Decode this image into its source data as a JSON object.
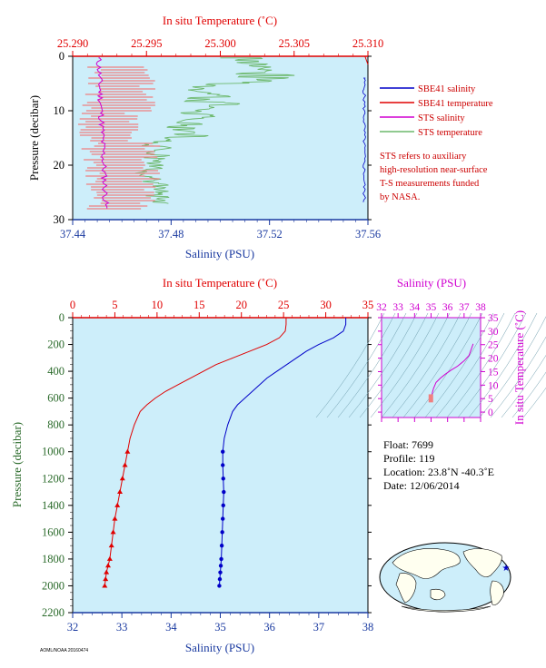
{
  "colors": {
    "plot_bg": "#cdeefa",
    "red": "#e00000",
    "blue": "#0000c8",
    "magenta": "#d000d0",
    "green": "#6cb86c",
    "salmon": "#f08080",
    "axis_blue": "#1a3aa0",
    "axis_green": "#2a6a2a",
    "note_red": "#cc0000"
  },
  "top_chart": {
    "title_top": "In situ Temperature (˚C)",
    "ylabel": "Pressure (decibar)",
    "xlabel": "Salinity (PSU)",
    "temp_ticks": [
      "25.290",
      "25.295",
      "25.300",
      "25.305",
      "25.310"
    ],
    "sal_ticks": [
      "37.44",
      "37.48",
      "37.52",
      "37.56"
    ],
    "p_ticks": [
      "0",
      "10",
      "20",
      "30"
    ],
    "legend": [
      {
        "label": "SBE41 salinity",
        "color": "#0000c8"
      },
      {
        "label": "SBE41 temperature",
        "color": "#e00000"
      },
      {
        "label": "STS salinity",
        "color": "#d000d0"
      },
      {
        "label": "STS temperature",
        "color": "#6cb86c"
      }
    ],
    "note": [
      "STS refers to auxiliary",
      "high-resolution near-surface",
      "T-S measurements funded",
      "by NASA."
    ]
  },
  "main_chart": {
    "title_top": "In situ Temperature (˚C)",
    "ylabel": "Pressure (decibar)",
    "xlabel": "Salinity (PSU)",
    "temp_ticks": [
      "0",
      "5",
      "10",
      "15",
      "20",
      "25",
      "30",
      "35"
    ],
    "sal_ticks": [
      "32",
      "33",
      "34",
      "35",
      "36",
      "37",
      "38"
    ],
    "p_ticks": [
      "0",
      "200",
      "400",
      "600",
      "800",
      "1000",
      "1200",
      "1400",
      "1600",
      "1800",
      "2000",
      "2200"
    ]
  },
  "ts_chart": {
    "title_top": "Salinity (PSU)",
    "ylabel": "In situ Temperature (˚C)",
    "sal_ticks": [
      "32",
      "33",
      "34",
      "35",
      "36",
      "37",
      "38"
    ],
    "t_ticks": [
      "0",
      "5",
      "10",
      "15",
      "20",
      "25",
      "30",
      "35"
    ]
  },
  "info": {
    "float": "Float:  7699",
    "profile": "Profile:  119",
    "location": "Location:  23.8˚N  -40.3˚E",
    "date": "Date:  12/06/2014"
  },
  "footer_small": "AOML/NOAA 20160474",
  "chart_data": [
    {
      "type": "line",
      "title": "In situ Temperature (˚C)",
      "xlabel": "Salinity (PSU)",
      "ylabel": "Pressure (decibar)",
      "xlim_salinity": [
        37.44,
        37.56
      ],
      "xlim_temperature": [
        25.29,
        25.31
      ],
      "ylim": [
        30,
        0
      ],
      "series": [
        {
          "name": "SBE41 salinity",
          "x": [
            37.559,
            37.5585,
            37.559,
            37.5588,
            37.5586,
            37.559,
            37.5587
          ],
          "y": [
            5,
            8,
            12,
            16,
            20,
            24,
            27
          ]
        },
        {
          "name": "SBE41 temperature",
          "x": [
            25.31,
            25.31,
            25.3099
          ],
          "y": [
            0.5,
            1,
            1.5
          ]
        },
        {
          "name": "STS salinity",
          "x": [
            37.4505,
            37.451,
            37.4515,
            37.4508,
            37.4512,
            37.451,
            37.4508,
            37.4515,
            37.4515,
            37.452,
            37.4525,
            37.453,
            37.4532,
            37.4533
          ],
          "y": [
            0.5,
            3,
            5,
            7,
            9,
            11,
            13,
            15,
            17,
            19,
            21,
            23,
            25,
            27
          ]
        },
        {
          "name": "STS temperature",
          "x": [
            25.3,
            25.305,
            25.302,
            25.301,
            25.298,
            25.297,
            25.296,
            25.295,
            25.2955,
            25.2945,
            25.296,
            25.2965,
            25.295
          ],
          "y": [
            1,
            3,
            5,
            7,
            9,
            11,
            13,
            15,
            17,
            19,
            21,
            23,
            26
          ]
        }
      ]
    },
    {
      "type": "line",
      "title": "In situ Temperature (˚C)",
      "xlabel": "Salinity (PSU)",
      "ylabel": "Pressure (decibar)",
      "xlim_salinity": [
        32,
        38
      ],
      "xlim_temperature": [
        0,
        35
      ],
      "ylim": [
        2200,
        0
      ],
      "series": [
        {
          "name": "Temperature",
          "x": [
            25.3,
            25.3,
            25.2,
            24.5,
            23.0,
            21.0,
            19.0,
            17.0,
            15.5,
            14.0,
            12.5,
            11.0,
            9.8,
            8.8,
            8.0,
            7.3,
            6.8,
            6.5,
            6.2,
            5.9,
            5.6,
            5.3,
            5.0,
            4.8,
            4.6,
            4.4,
            4.2,
            4.0,
            3.9,
            3.8
          ],
          "y": [
            0,
            50,
            100,
            150,
            200,
            250,
            300,
            350,
            400,
            450,
            500,
            550,
            600,
            650,
            700,
            800,
            900,
            1000,
            1100,
            1200,
            1300,
            1400,
            1500,
            1600,
            1700,
            1800,
            1850,
            1900,
            1950,
            2000
          ]
        },
        {
          "name": "Salinity",
          "x": [
            37.55,
            37.55,
            37.5,
            37.3,
            37.0,
            36.75,
            36.55,
            36.35,
            36.15,
            35.95,
            35.8,
            35.65,
            35.5,
            35.35,
            35.25,
            35.15,
            35.08,
            35.05,
            35.05,
            35.06,
            35.07,
            35.06,
            35.05,
            35.04,
            35.03,
            35.02,
            35.01,
            35.0,
            34.99,
            34.98
          ],
          "y": [
            0,
            50,
            100,
            150,
            200,
            250,
            300,
            350,
            400,
            450,
            500,
            550,
            600,
            650,
            700,
            800,
            900,
            1000,
            1100,
            1200,
            1300,
            1400,
            1500,
            1600,
            1700,
            1800,
            1850,
            1900,
            1950,
            2000
          ]
        }
      ]
    },
    {
      "type": "line",
      "title": "Salinity (PSU)",
      "xlabel": "",
      "ylabel": "In situ Temperature (˚C)",
      "xlim": [
        32,
        38
      ],
      "ylim": [
        -2,
        35
      ],
      "series": [
        {
          "name": "T-S",
          "x": [
            34.98,
            35.0,
            35.03,
            35.06,
            35.08,
            35.15,
            35.3,
            35.55,
            35.85,
            36.2,
            36.6,
            37.0,
            37.3,
            37.55
          ],
          "y": [
            3.8,
            4.6,
            5.6,
            6.5,
            7.3,
            8.8,
            11.0,
            12.5,
            14.0,
            15.5,
            17.0,
            19.0,
            21.0,
            25.3
          ]
        }
      ]
    }
  ]
}
